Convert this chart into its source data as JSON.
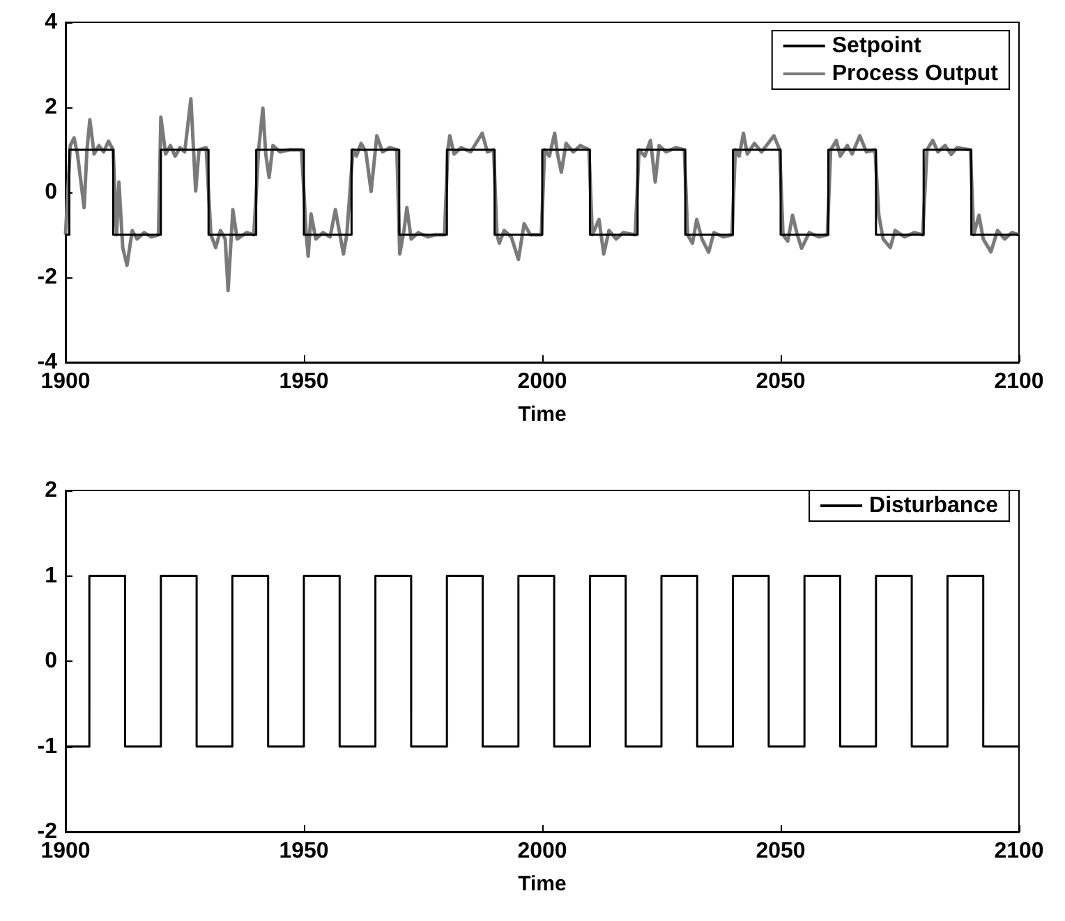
{
  "chart_data": [
    {
      "type": "line",
      "xlabel": "Time",
      "xlim": [
        1900,
        2100
      ],
      "xticks": [
        1900,
        1950,
        2000,
        2050,
        2100
      ],
      "ylim": [
        -4,
        4
      ],
      "yticks": [
        -4,
        -2,
        0,
        2,
        4
      ],
      "legend": "top right",
      "series": [
        {
          "name": "Setpoint",
          "type": "step",
          "color": "#000000",
          "x": [
            1900,
            1900.8,
            1910,
            1920,
            1930,
            1940,
            1950,
            1960,
            1970,
            1980,
            1990,
            2000,
            2010,
            2020,
            2030,
            2040,
            2050,
            2060,
            2070,
            2080,
            2090,
            2100
          ],
          "values": [
            -1,
            1,
            -1,
            1,
            -1,
            1,
            -1,
            1,
            -1,
            1,
            -1,
            1,
            -1,
            1,
            -1,
            1,
            -1,
            1,
            -1,
            1,
            -1,
            -1
          ]
        },
        {
          "name": "Process Output",
          "type": "line",
          "color": "#7a7a7a",
          "x": [
            1900,
            1901,
            1901.8,
            1902.5,
            1903.9,
            1904.5,
            1905.1,
            1906,
            1907,
            1908,
            1909,
            1910,
            1910.7,
            1911.2,
            1912,
            1912.9,
            1914,
            1915,
            1916.5,
            1918,
            1919.5,
            1920,
            1921,
            1922,
            1923,
            1924,
            1925,
            1926.3,
            1927.3,
            1928,
            1929.5,
            1930.5,
            1931.5,
            1932.5,
            1933.5,
            1934.1,
            1935.1,
            1936,
            1938,
            1939.5,
            1940.5,
            1941.4,
            1942,
            1942.7,
            1943.5,
            1945,
            1947,
            1949.5,
            1950.5,
            1950.9,
            1951.5,
            1952.5,
            1954,
            1955.5,
            1956.6,
            1958.3,
            1959,
            1960.3,
            1961,
            1962,
            1963,
            1964.1,
            1965.3,
            1966.5,
            1968,
            1969.5,
            1970.1,
            1971,
            1971.6,
            1972.5,
            1974,
            1976,
            1977.5,
            1979.5,
            1980.2,
            1980.6,
            1981.5,
            1983,
            1985,
            1987.4,
            1988.5,
            1989.8,
            1990.5,
            1991,
            1992,
            1993.5,
            1995,
            1996.2,
            1997.5,
            1999.8,
            2000.5,
            2001.5,
            2002.6,
            2003.2,
            2004,
            2005,
            2006.5,
            2008,
            2009.8,
            2010.5,
            2011.9,
            2012.9,
            2014,
            2015.5,
            2017,
            2019.5,
            2020.3,
            2021.5,
            2022.7,
            2023.7,
            2024.5,
            2026,
            2028,
            2029.8,
            2030.5,
            2031.5,
            2032.4,
            2033.5,
            2034.9,
            2036,
            2038,
            2039.8,
            2040.5,
            2041.3,
            2042.2,
            2043,
            2044.5,
            2046,
            2048.6,
            2049.8,
            2050.5,
            2051.5,
            2052.5,
            2053.5,
            2054.4,
            2056,
            2058,
            2059.8,
            2060.5,
            2061.7,
            2062.5,
            2064,
            2065,
            2066.6,
            2068,
            2069.8,
            2070.6,
            2071.5,
            2073,
            2074,
            2076,
            2078,
            2079.8,
            2080.7,
            2081.9,
            2083,
            2084.5,
            2085.8,
            2087,
            2089.8,
            2090.5,
            2091.6,
            2092.5,
            2094.1,
            2095.5,
            2097,
            2098.5,
            2100
          ],
          "values": [
            -1,
            1.1,
            1.28,
            0.9,
            -0.36,
            1.0,
            1.71,
            0.9,
            1.1,
            0.95,
            1.2,
            1.0,
            -1.0,
            0.24,
            -1.3,
            -1.72,
            -0.9,
            -1.1,
            -0.95,
            -1.05,
            -1.0,
            1.77,
            0.9,
            1.1,
            0.85,
            1.05,
            0.95,
            2.2,
            0.03,
            1.0,
            1.05,
            -1.0,
            -1.3,
            -0.9,
            -1.1,
            -2.31,
            -0.41,
            -1.1,
            -0.95,
            -1.0,
            1.0,
            1.98,
            0.9,
            0.35,
            1.1,
            0.95,
            1.0,
            1.0,
            -1.0,
            -1.5,
            -0.51,
            -1.1,
            -0.95,
            -1.05,
            -0.41,
            -1.45,
            -1.0,
            1.0,
            0.85,
            1.15,
            0.95,
            0.02,
            1.33,
            0.95,
            1.05,
            1.0,
            -1.45,
            -0.9,
            -0.36,
            -1.1,
            -0.95,
            -1.05,
            -1.0,
            -1.0,
            1.0,
            1.33,
            0.9,
            1.05,
            0.95,
            1.39,
            0.95,
            1.0,
            -1.0,
            -1.2,
            -0.9,
            -1.05,
            -1.58,
            -0.74,
            -1.0,
            -1.0,
            1.0,
            0.85,
            1.39,
            0.9,
            0.47,
            1.15,
            0.95,
            1.1,
            1.0,
            -1.0,
            -0.64,
            -1.45,
            -0.9,
            -1.1,
            -0.95,
            -1.0,
            1.0,
            0.85,
            1.22,
            0.24,
            1.1,
            0.95,
            1.05,
            1.0,
            -1.0,
            -1.2,
            -0.64,
            -1.1,
            -1.41,
            -0.95,
            -1.05,
            -1.0,
            1.0,
            0.85,
            1.39,
            0.9,
            1.15,
            0.95,
            1.33,
            1.0,
            -1.0,
            -1.15,
            -0.54,
            -1.0,
            -1.32,
            -0.95,
            -1.05,
            -1.0,
            1.0,
            1.22,
            0.85,
            1.1,
            0.9,
            1.33,
            0.95,
            1.0,
            -0.54,
            -1.1,
            -1.3,
            -0.9,
            -1.05,
            -0.95,
            -1.0,
            1.0,
            1.22,
            0.95,
            1.1,
            0.89,
            1.05,
            1.0,
            -1.0,
            -0.54,
            -1.1,
            -1.4,
            -0.9,
            -1.1,
            -0.95,
            -1.0
          ]
        }
      ]
    },
    {
      "type": "step",
      "xlabel": "Time",
      "xlim": [
        1900,
        2100
      ],
      "xticks": [
        1900,
        1950,
        2000,
        2050,
        2100
      ],
      "ylim": [
        -2,
        2
      ],
      "yticks": [
        -2,
        -1,
        0,
        1,
        2
      ],
      "legend": "top right",
      "series": [
        {
          "name": "Disturbance",
          "color": "#000000",
          "x": [
            1900,
            1905,
            1912.5,
            1920,
            1927.5,
            1935,
            1942.5,
            1950,
            1957.5,
            1965,
            1972.5,
            1980,
            1987.5,
            1995,
            2002.5,
            2010,
            2017.5,
            2025,
            2032.5,
            2040,
            2047.5,
            2055,
            2062.5,
            2070,
            2077.5,
            2085,
            2092.5,
            2100
          ],
          "values": [
            -1,
            1,
            -1,
            1,
            -1,
            1,
            -1,
            1,
            -1,
            1,
            -1,
            1,
            -1,
            1,
            -1,
            1,
            -1,
            1,
            -1,
            1,
            -1,
            1,
            -1,
            1,
            -1,
            1,
            -1,
            -1
          ]
        }
      ]
    }
  ]
}
